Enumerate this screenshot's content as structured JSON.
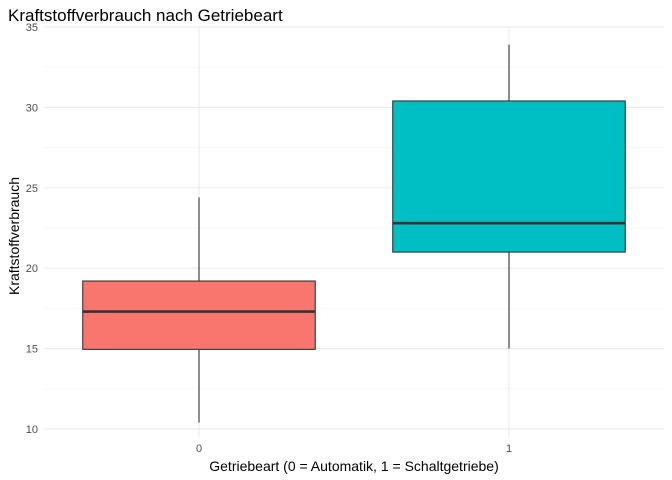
{
  "chart_data": {
    "type": "boxplot",
    "title": "Kraftstoffverbrauch nach Getriebeart",
    "xlabel": "Getriebeart (0 = Automatik, 1 = Schaltgetriebe)",
    "ylabel": "Kraftstoffverbrauch",
    "ylim": [
      9.5,
      35
    ],
    "yticks": [
      "10",
      "15",
      "20",
      "25",
      "30",
      "35"
    ],
    "categories": [
      "0",
      "1"
    ],
    "grid": true,
    "legend": "none",
    "boxes": [
      {
        "category": "0",
        "min": 10.4,
        "q1": 14.95,
        "median": 17.3,
        "q3": 19.2,
        "max": 24.4,
        "color": "#F8766D"
      },
      {
        "category": "1",
        "min": 15.0,
        "q1": 21.0,
        "median": 22.8,
        "q3": 30.4,
        "max": 33.9,
        "color": "#00BFC4"
      }
    ]
  }
}
